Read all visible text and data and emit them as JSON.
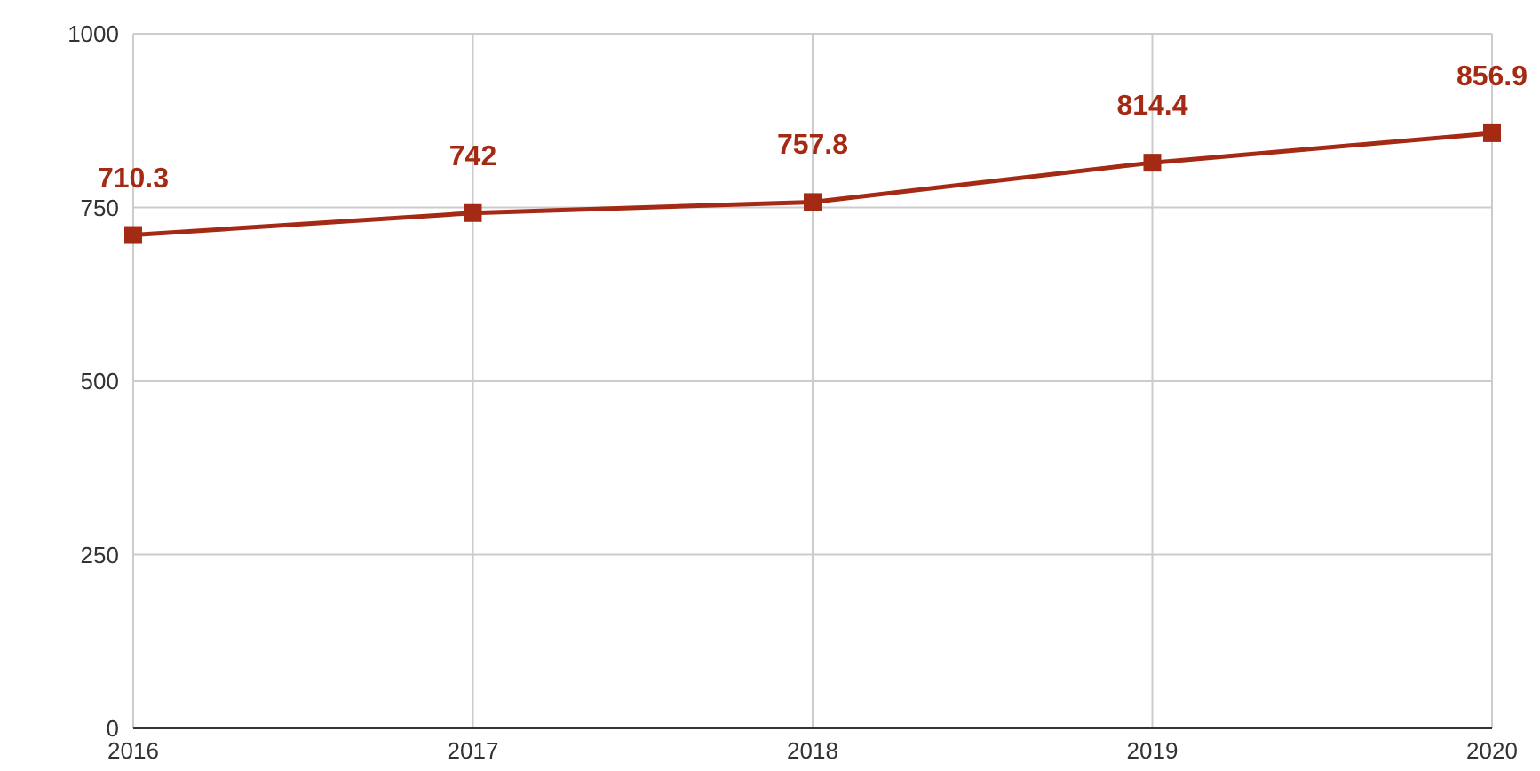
{
  "chart_data": {
    "type": "line",
    "categories": [
      "2016",
      "2017",
      "2018",
      "2019",
      "2020"
    ],
    "series": [
      {
        "color": "#a52a14",
        "values": [
          710.3,
          742,
          757.8,
          814.4,
          856.9
        ]
      }
    ],
    "ylim": [
      0,
      1000
    ],
    "yticks": [
      0,
      250,
      500,
      750,
      1000
    ],
    "grid": true,
    "marker": "square",
    "line_style": "solid",
    "data_labels": true
  }
}
